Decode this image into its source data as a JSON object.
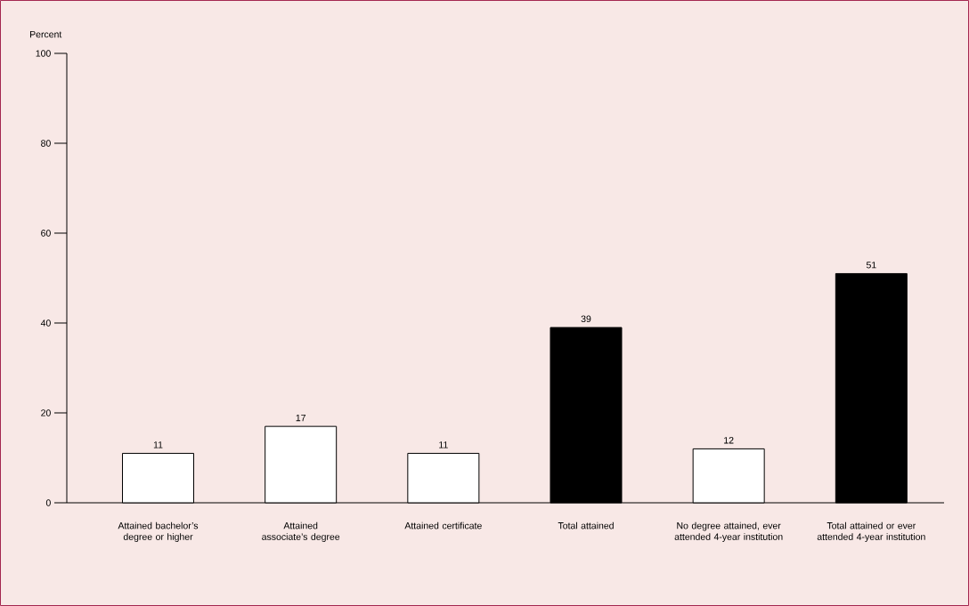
{
  "chart_data": {
    "type": "bar",
    "ylabel": "Percent",
    "categories": [
      "Attained bachelor’s degree or higher",
      "Attained associate’s degree",
      "Attained certificate",
      "Total attained",
      "No degree attained, ever attended 4-year institution",
      "Total attained or ever attended 4-year institution"
    ],
    "values": [
      11,
      17,
      11,
      39,
      12,
      51
    ],
    "colors": [
      "#ffffff",
      "#ffffff",
      "#ffffff",
      "#000000",
      "#ffffff",
      "#000000"
    ],
    "ylim": [
      0,
      100
    ],
    "yticks": [
      0,
      20,
      40,
      60,
      80,
      100
    ],
    "data_labels": true
  }
}
